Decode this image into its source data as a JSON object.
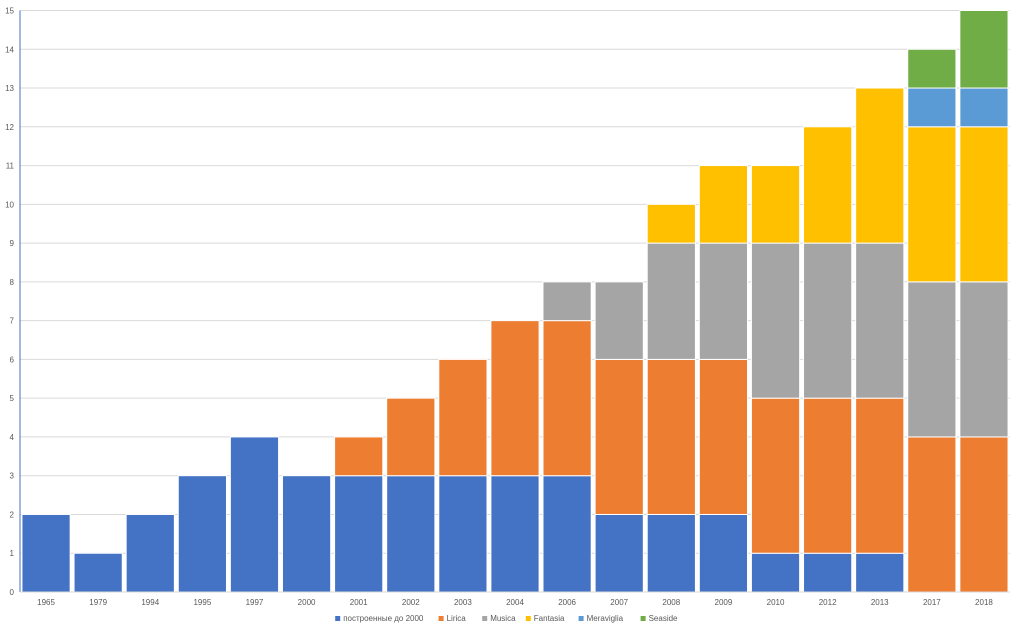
{
  "chart_data": {
    "type": "bar",
    "stacked": true,
    "categories": [
      "1965",
      "1979",
      "1994",
      "1995",
      "1997",
      "2000",
      "2001",
      "2002",
      "2003",
      "2004",
      "2006",
      "2007",
      "2008",
      "2009",
      "2010",
      "2012",
      "2013",
      "2017",
      "2018"
    ],
    "series": [
      {
        "name": "построенные до 2000",
        "color": "#4472C4",
        "values": [
          2,
          1,
          2,
          3,
          4,
          3,
          3,
          3,
          3,
          3,
          3,
          2,
          2,
          2,
          1,
          1,
          1,
          0,
          0
        ]
      },
      {
        "name": "Lirica",
        "color": "#ED7D31",
        "values": [
          0,
          0,
          0,
          0,
          0,
          0,
          1,
          2,
          3,
          4,
          4,
          4,
          4,
          4,
          4,
          4,
          4,
          4,
          4
        ]
      },
      {
        "name": "Musica",
        "color": "#A5A5A5",
        "values": [
          0,
          0,
          0,
          0,
          0,
          0,
          0,
          0,
          0,
          0,
          1,
          2,
          3,
          3,
          4,
          4,
          4,
          4,
          4
        ]
      },
      {
        "name": "Fantasia",
        "color": "#FFC000",
        "values": [
          0,
          0,
          0,
          0,
          0,
          0,
          0,
          0,
          0,
          0,
          0,
          0,
          1,
          2,
          2,
          3,
          4,
          4,
          4
        ]
      },
      {
        "name": "Meraviglia",
        "color": "#5B9BD5",
        "values": [
          0,
          0,
          0,
          0,
          0,
          0,
          0,
          0,
          0,
          0,
          0,
          0,
          0,
          0,
          0,
          0,
          0,
          1,
          1
        ]
      },
      {
        "name": "Seaside",
        "color": "#70AD47",
        "values": [
          0,
          0,
          0,
          0,
          0,
          0,
          0,
          0,
          0,
          0,
          0,
          0,
          0,
          0,
          0,
          0,
          0,
          1,
          2
        ]
      }
    ],
    "ylim": [
      0,
      15
    ],
    "yticks": [
      "0",
      "1",
      "2",
      "3",
      "4",
      "5",
      "6",
      "7",
      "8",
      "9",
      "10",
      "11",
      "12",
      "13",
      "14",
      "15"
    ],
    "grid": true,
    "legend_position": "bottom",
    "title": "",
    "xlabel": "",
    "ylabel": ""
  }
}
